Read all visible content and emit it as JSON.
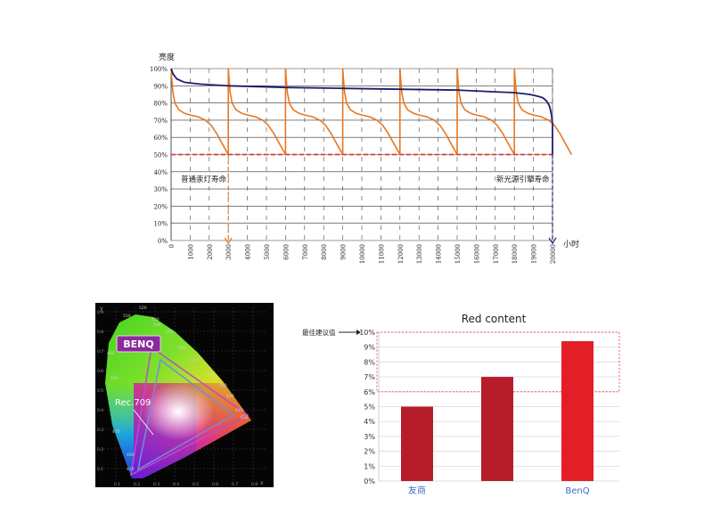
{
  "chart_data": [
    {
      "type": "line",
      "ylabel": "亮度",
      "xlabel": "小时",
      "xlim": [
        0,
        20000
      ],
      "ylim": [
        0,
        100
      ],
      "y_ticks": [
        "100%",
        "90%",
        "80%",
        "70%",
        "60%",
        "50%",
        "40%",
        "30%",
        "20%",
        "10%",
        "0%"
      ],
      "x_ticks": [
        "0",
        "1000",
        "2000",
        "3000",
        "4000",
        "5000",
        "6000",
        "7000",
        "8000",
        "9000",
        "10000",
        "11000",
        "12000",
        "13000",
        "14000",
        "15000",
        "16000",
        "17000",
        "18000",
        "19000",
        "20000"
      ],
      "grid": true,
      "threshold": 50,
      "lamp_cycles": [
        0,
        3000,
        6000,
        9000,
        12000,
        15000,
        18000
      ],
      "lamp_cycle_length": 3000,
      "lamp_curve": {
        "x": [
          0,
          50,
          100,
          200,
          400,
          700,
          1000,
          1400,
          1800,
          2100,
          2400,
          2600,
          2800,
          3000
        ],
        "y": [
          100,
          92,
          86,
          80,
          76,
          74,
          73,
          72,
          70,
          67,
          62,
          58,
          54,
          50
        ]
      },
      "led_curve": {
        "x": [
          0,
          100,
          300,
          700,
          1500,
          3000,
          6000,
          9000,
          12000,
          15000,
          17000,
          18000,
          18800,
          19200,
          19500,
          19700,
          19850,
          19950,
          20000
        ],
        "y": [
          100,
          97,
          94,
          92,
          91,
          90,
          89,
          88.5,
          88,
          87.5,
          86.5,
          86,
          85,
          84,
          83,
          81,
          78,
          73,
          68
        ]
      },
      "series": [
        {
          "name": "普通汞灯寿命",
          "end_x": 3000
        },
        {
          "name": "新光源引擎寿命",
          "end_x": 20000
        }
      ],
      "colors": {
        "lamp": "#e87722",
        "led": "#1b1f6b",
        "threshold": "#e53935",
        "grid": "#333333"
      }
    },
    {
      "type": "bar",
      "title": "Red content",
      "categories": [
        "友商",
        "",
        "BenQ"
      ],
      "values": [
        5,
        7,
        9.4
      ],
      "ylim": [
        0,
        10
      ],
      "y_ticks": [
        "10%",
        "9%",
        "8%",
        "7%",
        "6%",
        "5%",
        "4%",
        "3%",
        "2%",
        "1%",
        "0%"
      ],
      "recommended_label": "最佳建议值",
      "recommended_range": [
        6,
        10
      ],
      "colors": [
        "#b71c2b",
        "#b71c2b",
        "#e41e26"
      ],
      "category_color": "#3b6cc9",
      "grid": true
    }
  ],
  "gamut": {
    "brand_badge": "BENQ",
    "rec_label": "Rec.709",
    "wavelength_labels": [
      "520",
      "530",
      "510",
      "540",
      "550",
      "560",
      "570",
      "580",
      "590",
      "600",
      "620",
      "630",
      "490",
      "480",
      "470",
      "460",
      "420"
    ],
    "axis_x_ticks": [
      "0.1",
      "0.2",
      "0.3",
      "0.4",
      "0.5",
      "0.6",
      "0.7",
      "0.8"
    ],
    "axis_y_ticks": [
      "0.9",
      "0.8",
      "0.7",
      "0.6",
      "0.5",
      "0.4",
      "0.3",
      "0.2",
      "0.1"
    ],
    "axis_x_label": "x",
    "axis_y_label": "y"
  }
}
